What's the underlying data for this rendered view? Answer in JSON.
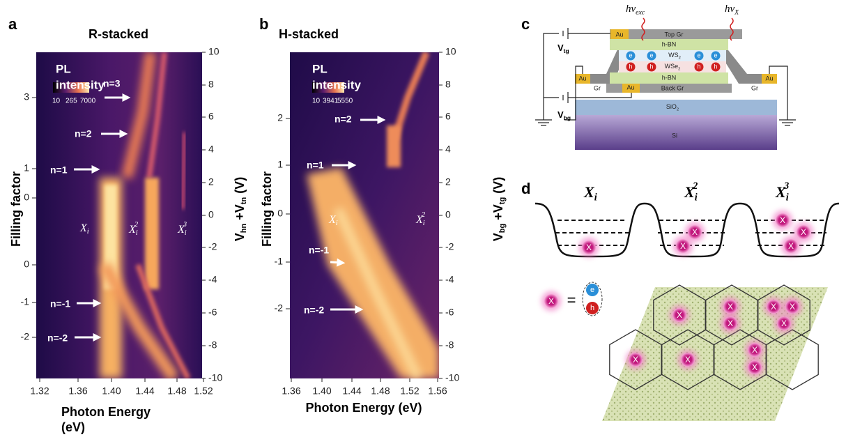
{
  "panel_a": {
    "label": "a",
    "title": "R-stacked",
    "colorbar": {
      "title_line1": "PL",
      "title_line2": "intensity",
      "ticks": [
        "10",
        "265",
        "7000"
      ]
    },
    "y_left_title": "Filling factor",
    "y_left_ticks": [
      "3",
      "1",
      "0",
      "0",
      "-1",
      "-2"
    ],
    "y_right_title": {
      "v1": "V",
      "sub1": "hn",
      "v2": " +V",
      "sub2": "tn",
      "unit": " (V)"
    },
    "y_right_ticks": [
      "10",
      "8",
      "6",
      "4",
      "2",
      "0",
      "-2",
      "-4",
      "-6",
      "-8",
      "-10"
    ],
    "x_ticks": [
      "1.32",
      "1.36",
      "1.40",
      "1.44",
      "1.48",
      "1.52"
    ],
    "x_title_line1": "Photon Energy",
    "x_title_line2": "(eV)",
    "arrows": [
      "n=3",
      "n=2",
      "n=1",
      "n=-1",
      "n=-2"
    ],
    "annotations": [
      {
        "base": "X",
        "sub": "i"
      },
      {
        "base": "X",
        "sub": "i",
        "sup": "2"
      },
      {
        "base": "X",
        "sub": "i",
        "sup": "3"
      }
    ]
  },
  "panel_b": {
    "label": "b",
    "title": "H-stacked",
    "colorbar": {
      "title_line1": "PL",
      "title_line2": "intensity",
      "ticks": [
        "10",
        "3941",
        "5550"
      ]
    },
    "y_left_title": "Filling factor",
    "y_left_ticks": [
      "2",
      "1",
      "0",
      "-1",
      "-2"
    ],
    "y_right_title": {
      "v1": "V",
      "sub1": "bg",
      "v2": " +V",
      "sub2": "tg",
      "unit": " (V)"
    },
    "y_right_ticks": [
      "10",
      "8",
      "6",
      "4",
      "2",
      "0",
      "-2",
      "-4",
      "-6",
      "-8",
      "-10"
    ],
    "x_ticks": [
      "1.36",
      "1.40",
      "1.44",
      "1.48",
      "1.52",
      "1.56"
    ],
    "x_title": "Photon Energy (eV)",
    "arrows": [
      "n=2",
      "n=1",
      "n=-1",
      "n=-2"
    ],
    "annotations": [
      {
        "base": "X",
        "sub": "i"
      },
      {
        "base": "X",
        "sub": "i",
        "sup": "2"
      }
    ]
  },
  "panel_c": {
    "label": "c",
    "layers": {
      "au_top": "Au",
      "top_gr": "Top Gr",
      "hbn_top": "h-BN",
      "ws2": {
        "base": "WS",
        "sub": "2"
      },
      "wse2": {
        "base": "WSe",
        "sub": "2"
      },
      "hbn_bottom": "h-BN",
      "back_gr": "Back Gr",
      "au_back": "Au",
      "au_left": "Au",
      "gr_left": "Gr",
      "au_right": "Au",
      "gr_right": "Gr",
      "sio2": {
        "base": "SiO",
        "sub": "2"
      },
      "si": "Si"
    },
    "electron": "e",
    "hole": "h",
    "v_tg": {
      "base": "V",
      "sub": "tg"
    },
    "v_bg": {
      "base": "V",
      "sub": "bg"
    },
    "photon_exc": {
      "base": "hν",
      "sub": "exc"
    },
    "photon_x": {
      "base": "hν",
      "sub": "X"
    }
  },
  "panel_d": {
    "label": "d",
    "wells": [
      {
        "base": "X",
        "sub": "i"
      },
      {
        "base": "X",
        "sub": "i",
        "sup": "2"
      },
      {
        "base": "X",
        "sub": "i",
        "sup": "3"
      }
    ],
    "exciton_symbol": "X",
    "equals": "=",
    "electron": "e",
    "hole": "h"
  }
}
